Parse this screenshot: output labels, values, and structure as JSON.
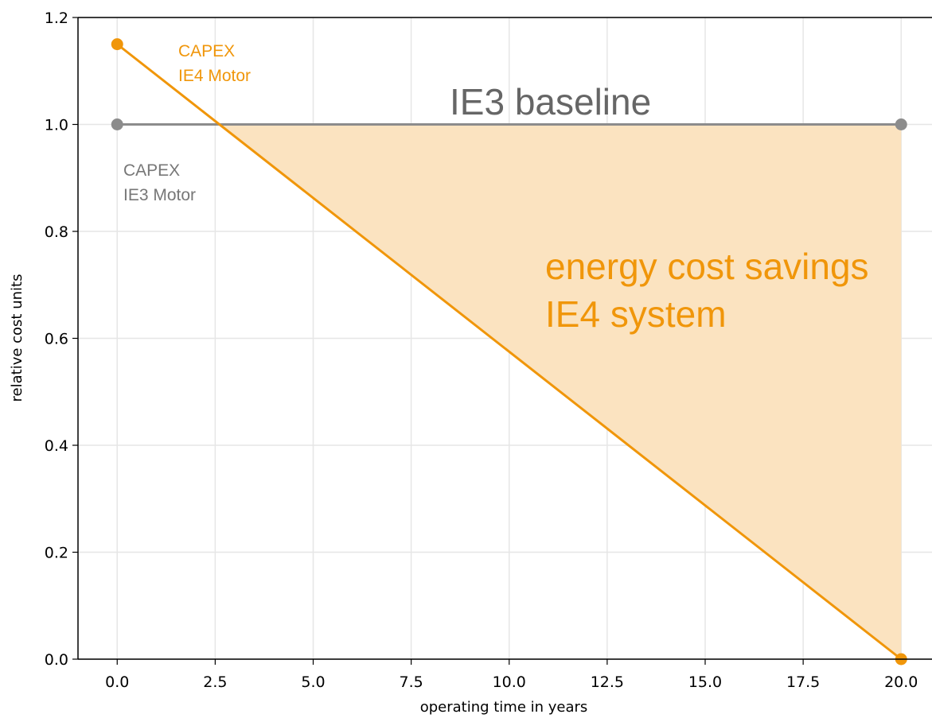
{
  "chart_data": {
    "type": "line",
    "x_label": "operating time in years",
    "y_label": "relative cost units",
    "x": [
      0,
      20
    ],
    "series": [
      {
        "color": "#f0960a",
        "values": [
          1.15,
          0
        ]
      },
      {
        "color": "#8c8c8c",
        "values": [
          1,
          1
        ]
      }
    ],
    "fill_color": "#fbe3c0",
    "xlim": [
      -1,
      21
    ],
    "ylim": [
      0,
      1.2
    ],
    "xticks": [
      {
        "value": 0,
        "label": "0.0"
      },
      2.5,
      {
        "value": 5,
        "label": "5.0"
      },
      7.5,
      {
        "value": 10,
        "label": "10.0"
      },
      12.5,
      {
        "value": 15,
        "label": "15.0"
      },
      17.5,
      {
        "value": 20,
        "label": "20.0"
      }
    ],
    "yticks": [
      {
        "value": 0,
        "label": "0.0"
      },
      0.2,
      0.4,
      0.6,
      0.8,
      {
        "value": 1,
        "label": "1.0"
      },
      1.2
    ],
    "grid": true,
    "annotations": [
      {
        "lines": [
          "CAPEX",
          "IE4 Motor"
        ],
        "color": "#f0960a"
      },
      {
        "lines": [
          "IE3 baseline"
        ],
        "color": "#666666"
      },
      {
        "lines": [
          "CAPEX",
          "IE3 Motor"
        ],
        "color": "#777777"
      },
      {
        "lines": [
          "energy cost savings",
          "IE4 system"
        ],
        "color": "#f0960a"
      }
    ]
  }
}
